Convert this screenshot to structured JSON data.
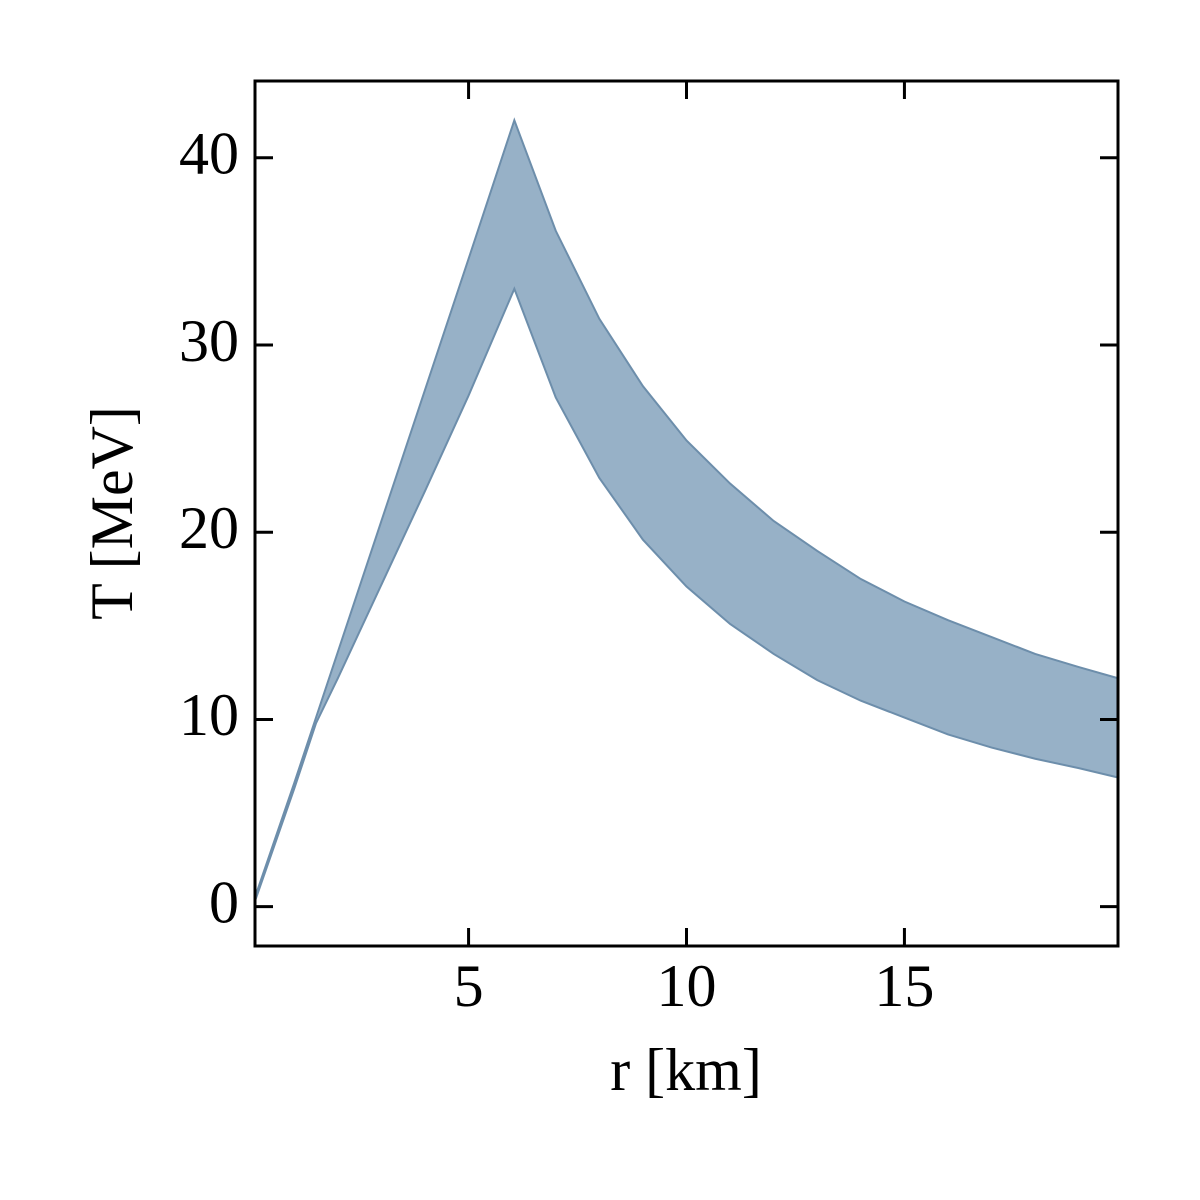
{
  "chart_data": {
    "type": "fill_between",
    "xlabel": "r [km]",
    "ylabel": "T [MeV]",
    "x": [
      0.1,
      1,
      1.5,
      2,
      3,
      4,
      5,
      6.05,
      7,
      8,
      9,
      10,
      11,
      12,
      13,
      14,
      15,
      16,
      17,
      18,
      19,
      19.9
    ],
    "series": [
      {
        "values": [
          0.5,
          6.6,
          10.1,
          13.6,
          20.6,
          27.6,
          34.6,
          42,
          36.1,
          31.4,
          27.8,
          24.9,
          22.6,
          20.6,
          19.0,
          17.5,
          16.3,
          15.3,
          14.4,
          13.5,
          12.8,
          12.2
        ]
      },
      {
        "values": [
          0.3,
          6.3,
          9.8,
          12.2,
          17.2,
          22.2,
          27.3,
          33,
          27.2,
          22.9,
          19.6,
          17.1,
          15.1,
          13.5,
          12.1,
          11.0,
          10.1,
          9.2,
          8.5,
          7.9,
          7.4,
          6.9
        ]
      }
    ],
    "color": "#7a9bb7",
    "edge_color": "#6d8eab",
    "xlim": [
      0.1,
      19.9
    ],
    "ylim": [
      -2.1,
      44.1
    ],
    "xticks": [
      5,
      10,
      15
    ],
    "yticks": [
      0,
      10,
      20,
      30,
      40
    ]
  }
}
